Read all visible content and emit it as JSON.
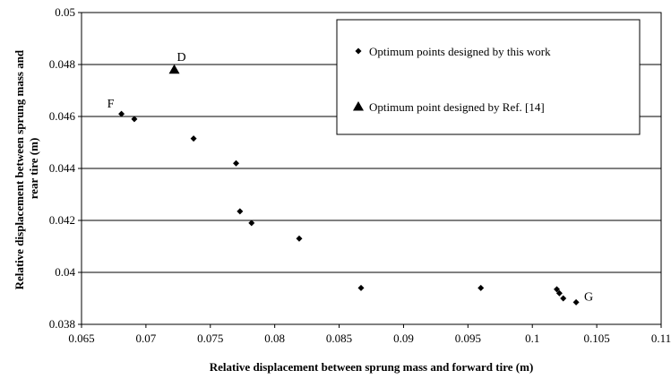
{
  "chart_data": {
    "type": "scatter",
    "xlabel": "Relative displacement between sprung mass and forward tire (m)",
    "ylabel_lines": [
      "Relative displacement between sprung mass and",
      "rear tire (m)"
    ],
    "xlim": [
      0.065,
      0.11
    ],
    "ylim": [
      0.038,
      0.05
    ],
    "x_ticks": [
      "0.065",
      "0.07",
      "0.075",
      "0.08",
      "0.085",
      "0.09",
      "0.095",
      "0.1",
      "0.105",
      "0.11"
    ],
    "y_ticks": [
      "0.038",
      "0.04",
      "0.042",
      "0.044",
      "0.046",
      "0.048",
      "0.05"
    ],
    "grid": "horizontal",
    "legend_position": "top-right",
    "series": [
      {
        "name": "Optimum points designed by this work",
        "marker": "diamond",
        "color": "#000000",
        "points": [
          [
            0.0681,
            0.0461
          ],
          [
            0.0691,
            0.0459
          ],
          [
            0.0737,
            0.04515
          ],
          [
            0.077,
            0.0442
          ],
          [
            0.0773,
            0.04235
          ],
          [
            0.0782,
            0.0419
          ],
          [
            0.0819,
            0.0413
          ],
          [
            0.0867,
            0.0394
          ],
          [
            0.096,
            0.0394
          ],
          [
            0.1019,
            0.03935
          ],
          [
            0.1021,
            0.0392
          ],
          [
            0.1024,
            0.039
          ],
          [
            0.1034,
            0.03885
          ]
        ]
      },
      {
        "name": "Optimum point designed by Ref. [14]",
        "marker": "triangle",
        "color": "#000000",
        "points": [
          [
            0.0722,
            0.0478
          ]
        ]
      }
    ],
    "annotations": [
      {
        "text": "F",
        "x": 0.0681,
        "y": 0.0461
      },
      {
        "text": "D",
        "x": 0.0722,
        "y": 0.0478
      },
      {
        "text": "G",
        "x": 0.1034,
        "y": 0.03885
      }
    ]
  }
}
